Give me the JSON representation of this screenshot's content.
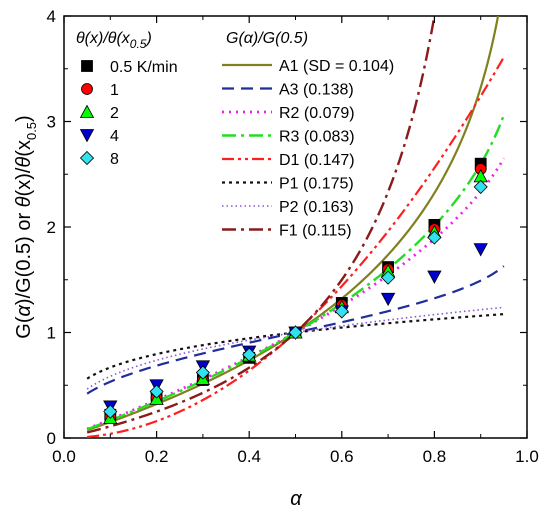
{
  "chart_data": {
    "type": "scatter",
    "xlabel": "α",
    "ylabel": "G(α)/G(0.5) or θ(x)/θ(x0.5)",
    "xlim": [
      0.0,
      1.0
    ],
    "ylim": [
      0,
      4
    ],
    "xticks": [
      0.0,
      0.2,
      0.4,
      0.6,
      0.8,
      1.0
    ],
    "xtick_labels": [
      "0.0",
      "0.2",
      "0.4",
      "0.6",
      "0.8",
      "1.0"
    ],
    "yticks": [
      0,
      1,
      2,
      3,
      4
    ],
    "ytick_labels": [
      "0",
      "1",
      "2",
      "3",
      "4"
    ],
    "grid": false,
    "legends": [
      {
        "title": "θ(x)/θ(x0.5)",
        "placement": "top-left"
      },
      {
        "title": "G(α)/G(0.5)",
        "placement": "top-center"
      }
    ],
    "point_series": [
      {
        "name": "0.5 K/min",
        "marker": "square",
        "color": "#000000",
        "x": [
          0.1,
          0.2,
          0.3,
          0.4,
          0.5,
          0.6,
          0.7,
          0.8,
          0.9
        ],
        "y": [
          0.22,
          0.4,
          0.55,
          0.76,
          1.0,
          1.28,
          1.62,
          2.02,
          2.6
        ]
      },
      {
        "name": "1",
        "marker": "circle",
        "color": "#ff0000",
        "x": [
          0.1,
          0.2,
          0.3,
          0.4,
          0.5,
          0.6,
          0.7,
          0.8,
          0.9
        ],
        "y": [
          0.2,
          0.38,
          0.55,
          0.77,
          1.0,
          1.26,
          1.6,
          1.98,
          2.55
        ]
      },
      {
        "name": "2",
        "marker": "triangle-up",
        "color": "#00ff00",
        "x": [
          0.1,
          0.2,
          0.3,
          0.4,
          0.5,
          0.6,
          0.7,
          0.8,
          0.9
        ],
        "y": [
          0.19,
          0.37,
          0.56,
          0.78,
          1.0,
          1.24,
          1.58,
          1.95,
          2.48
        ]
      },
      {
        "name": "4",
        "marker": "triangle-down",
        "color": "#0000cc",
        "x": [
          0.1,
          0.2,
          0.3,
          0.4,
          0.5,
          0.6,
          0.7,
          0.8,
          0.9
        ],
        "y": [
          0.3,
          0.5,
          0.68,
          0.82,
          1.0,
          1.2,
          1.32,
          1.53,
          1.79
        ]
      },
      {
        "name": "8",
        "marker": "diamond",
        "color": "#33e0ee",
        "x": [
          0.1,
          0.2,
          0.3,
          0.4,
          0.5,
          0.6,
          0.7,
          0.8,
          0.9
        ],
        "y": [
          0.25,
          0.44,
          0.62,
          0.79,
          1.0,
          1.2,
          1.52,
          1.9,
          2.38
        ]
      }
    ],
    "line_series": [
      {
        "name": "A1 (SD = 0.104)",
        "color": "#808020",
        "dash": "solid",
        "width": 2.2,
        "model": "A1"
      },
      {
        "name": "A3 (0.138)",
        "color": "#1f2f9a",
        "dash": "dash",
        "width": 2.2,
        "model": "A3"
      },
      {
        "name": "R2 (0.079)",
        "color": "#ee22ee",
        "dash": "dot",
        "width": 2.8,
        "model": "R2"
      },
      {
        "name": "R3 (0.083)",
        "color": "#22dd22",
        "dash": "dashdot",
        "width": 2.4,
        "model": "R3"
      },
      {
        "name": "D1 (0.147)",
        "color": "#ff1f1f",
        "dash": "dashdotdot",
        "width": 2.2,
        "model": "D1"
      },
      {
        "name": "P1 (0.175)",
        "color": "#111111",
        "dash": "shortdot",
        "width": 2.2,
        "model": "P1"
      },
      {
        "name": "P2 (0.163)",
        "color": "#8a55dd",
        "dash": "finedot",
        "width": 1.6,
        "model": "P2"
      },
      {
        "name": "F1 (0.115)",
        "color": "#8b1a1a",
        "dash": "dashdot",
        "width": 2.4,
        "model": "F1"
      }
    ]
  }
}
